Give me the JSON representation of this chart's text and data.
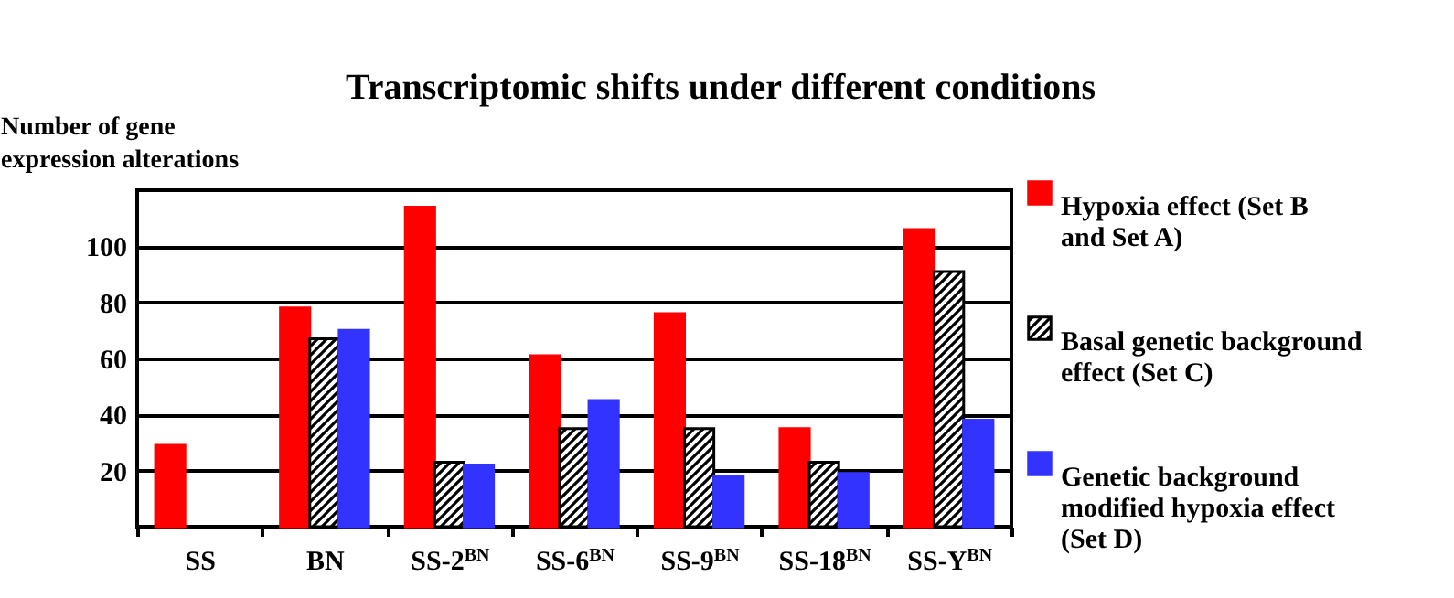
{
  "chart_data": {
    "type": "bar",
    "title": "Transcriptomic shifts under different conditions",
    "ylabel": "Number of gene expression alterations",
    "categories": [
      "SS",
      "BN",
      "SS-2$^{BN}$",
      "SS-6$^{BN}$",
      "SS-9$^{BN}$",
      "SS-18$^{BN}$",
      "SS-Y$^{BN}$"
    ],
    "series": [
      {
        "name": "Hypoxia effect (Set B and Set A)",
        "color": "#ff0000",
        "values": [
          29,
          78,
          114,
          61,
          76,
          35,
          106
        ]
      },
      {
        "name": "Basal genetic background effect (Set C)",
        "color": "#000000",
        "values": [
          null,
          67,
          23,
          35,
          35,
          23,
          91
        ]
      },
      {
        "name": "Genetic background modified hypoxia effect (Set D)",
        "color": "#3333ff",
        "values": [
          null,
          70,
          22,
          45,
          18,
          19,
          38
        ]
      }
    ],
    "ylim": [
      0,
      120
    ],
    "yticks": [
      20,
      40,
      60,
      80,
      100
    ],
    "grid": "y",
    "legend": "right"
  }
}
